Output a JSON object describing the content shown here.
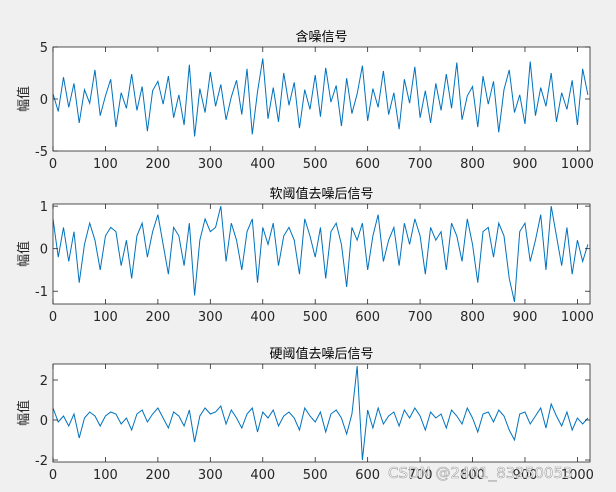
{
  "chart_data": [
    {
      "type": "line",
      "title": "含噪信号",
      "ylabel": "幅值",
      "color": "#0072bd",
      "xlim": [
        0,
        1024
      ],
      "xticks": [
        0,
        100,
        200,
        300,
        400,
        500,
        600,
        700,
        800,
        900,
        1000
      ],
      "ylim": [
        -5,
        5
      ],
      "yticks": [
        -5,
        0,
        5
      ],
      "x": [
        0,
        10,
        20,
        30,
        40,
        50,
        60,
        70,
        80,
        90,
        100,
        110,
        120,
        130,
        140,
        150,
        160,
        170,
        180,
        190,
        200,
        210,
        220,
        230,
        240,
        250,
        260,
        270,
        280,
        290,
        300,
        310,
        320,
        330,
        340,
        350,
        360,
        370,
        380,
        390,
        400,
        410,
        420,
        430,
        440,
        450,
        460,
        470,
        480,
        490,
        500,
        510,
        520,
        530,
        540,
        550,
        560,
        570,
        580,
        590,
        600,
        610,
        620,
        630,
        640,
        650,
        660,
        670,
        680,
        690,
        700,
        710,
        720,
        730,
        740,
        750,
        760,
        770,
        780,
        790,
        800,
        810,
        820,
        830,
        840,
        850,
        860,
        870,
        880,
        890,
        900,
        910,
        920,
        930,
        940,
        950,
        960,
        970,
        980,
        990,
        1000,
        1010,
        1020
      ],
      "values": [
        0.5,
        -1.2,
        2.1,
        -0.8,
        1.5,
        -2.3,
        0.9,
        -0.4,
        2.8,
        -1.6,
        0.3,
        1.9,
        -2.7,
        0.6,
        -0.9,
        2.4,
        -1.1,
        1.2,
        -3.1,
        0.8,
        1.7,
        -0.5,
        2.2,
        -1.8,
        0.4,
        -2.5,
        3.3,
        -3.6,
        1.0,
        -1.3,
        2.6,
        -0.7,
        1.4,
        -2.0,
        0.2,
        1.8,
        -1.5,
        2.9,
        -3.4,
        0.7,
        3.9,
        -1.9,
        1.1,
        -2.2,
        2.5,
        -0.6,
        1.6,
        -2.8,
        0.9,
        -1.0,
        2.3,
        -1.7,
        3.0,
        -0.3,
        1.3,
        -2.6,
        2.0,
        -1.4,
        0.5,
        3.2,
        -2.1,
        1.0,
        -0.8,
        2.7,
        -1.5,
        0.6,
        -2.9,
        1.9,
        -0.4,
        3.1,
        -1.8,
        0.8,
        -2.3,
        1.5,
        -1.1,
        2.4,
        -0.9,
        3.5,
        -2.0,
        0.3,
        1.2,
        -2.7,
        2.2,
        -0.5,
        1.7,
        -3.2,
        0.9,
        2.8,
        -1.3,
        0.4,
        -2.4,
        3.6,
        -1.6,
        1.1,
        -0.7,
        2.5,
        -2.2,
        0.6,
        -1.0,
        1.8,
        -2.5,
        2.9,
        0.4
      ]
    },
    {
      "type": "line",
      "title": "软阈值去噪后信号",
      "ylabel": "幅值",
      "color": "#0072bd",
      "xlim": [
        0,
        1024
      ],
      "xticks": [
        0,
        100,
        200,
        300,
        400,
        500,
        600,
        700,
        800,
        900,
        1000
      ],
      "ylim": [
        -1.3,
        1.05
      ],
      "yticks": [
        -1,
        0,
        1
      ],
      "x": [
        0,
        10,
        20,
        30,
        40,
        50,
        60,
        70,
        80,
        90,
        100,
        110,
        120,
        130,
        140,
        150,
        160,
        170,
        180,
        190,
        200,
        210,
        220,
        230,
        240,
        250,
        260,
        270,
        280,
        290,
        300,
        310,
        320,
        330,
        340,
        350,
        360,
        370,
        380,
        390,
        400,
        410,
        420,
        430,
        440,
        450,
        460,
        470,
        480,
        490,
        500,
        510,
        520,
        530,
        540,
        550,
        560,
        570,
        580,
        590,
        600,
        610,
        620,
        630,
        640,
        650,
        660,
        670,
        680,
        690,
        700,
        710,
        720,
        730,
        740,
        750,
        760,
        770,
        780,
        790,
        800,
        810,
        820,
        830,
        840,
        850,
        860,
        870,
        880,
        890,
        900,
        910,
        920,
        930,
        940,
        950,
        960,
        970,
        980,
        990,
        1000,
        1010,
        1020
      ],
      "values": [
        0.7,
        -0.2,
        0.5,
        -0.3,
        0.4,
        -0.8,
        0.1,
        0.6,
        0.2,
        -0.5,
        0.3,
        0.5,
        0.4,
        -0.4,
        0.2,
        -0.7,
        0.3,
        0.6,
        -0.2,
        0.4,
        0.8,
        0.1,
        -0.6,
        0.5,
        0.3,
        -0.4,
        0.6,
        -1.1,
        0.2,
        0.7,
        0.4,
        0.5,
        1.0,
        -0.3,
        0.6,
        0.2,
        -0.5,
        0.4,
        0.7,
        -0.8,
        0.5,
        0.1,
        0.6,
        -0.4,
        0.3,
        0.5,
        0.2,
        -0.6,
        0.7,
        0.3,
        -0.2,
        0.5,
        -0.7,
        0.4,
        0.6,
        0.1,
        -0.9,
        0.5,
        0.2,
        0.6,
        -0.5,
        0.3,
        0.8,
        -0.3,
        0.2,
        0.5,
        -0.4,
        0.6,
        0.1,
        0.7,
        0.3,
        -0.6,
        0.5,
        0.2,
        0.4,
        -0.5,
        0.6,
        0.3,
        -0.3,
        0.7,
        0.1,
        -0.8,
        0.4,
        0.5,
        -0.2,
        0.6,
        0.3,
        -0.7,
        -1.25,
        0.4,
        0.6,
        -0.3,
        0.2,
        0.8,
        -0.5,
        1.0,
        0.3,
        -0.4,
        0.5,
        -0.6,
        0.2,
        -0.3,
        0.1
      ]
    },
    {
      "type": "line",
      "title": "硬阈值去噪后信号",
      "ylabel": "幅值",
      "color": "#0072bd",
      "xlim": [
        0,
        1024
      ],
      "xticks": [
        0,
        100,
        200,
        300,
        400,
        500,
        600,
        700,
        800,
        900,
        1000
      ],
      "ylim": [
        -2.1,
        2.8
      ],
      "yticks": [
        -2,
        0,
        2
      ],
      "x": [
        0,
        10,
        20,
        30,
        40,
        50,
        60,
        70,
        80,
        90,
        100,
        110,
        120,
        130,
        140,
        150,
        160,
        170,
        180,
        190,
        200,
        210,
        220,
        230,
        240,
        250,
        260,
        270,
        280,
        290,
        300,
        310,
        320,
        330,
        340,
        350,
        360,
        370,
        380,
        390,
        400,
        410,
        420,
        430,
        440,
        450,
        460,
        470,
        480,
        490,
        500,
        510,
        520,
        530,
        540,
        550,
        560,
        570,
        580,
        590,
        600,
        610,
        620,
        630,
        640,
        650,
        660,
        670,
        680,
        690,
        700,
        710,
        720,
        730,
        740,
        750,
        760,
        770,
        780,
        790,
        800,
        810,
        820,
        830,
        840,
        850,
        860,
        870,
        880,
        890,
        900,
        910,
        920,
        930,
        940,
        950,
        960,
        970,
        980,
        990,
        1000,
        1010,
        1020
      ],
      "values": [
        0.6,
        -0.1,
        0.2,
        -0.3,
        0.3,
        -0.9,
        0.1,
        0.4,
        0.2,
        -0.3,
        0.2,
        0.4,
        0.3,
        -0.2,
        0.1,
        -0.5,
        0.3,
        0.5,
        -0.1,
        0.3,
        0.6,
        0.1,
        -0.4,
        0.4,
        0.2,
        -0.3,
        0.5,
        -1.1,
        0.2,
        0.6,
        0.3,
        0.4,
        0.7,
        -0.2,
        0.5,
        0.1,
        -0.4,
        0.3,
        0.6,
        -0.6,
        0.4,
        0.1,
        0.5,
        -0.3,
        0.2,
        0.4,
        0.1,
        -0.5,
        0.6,
        0.2,
        -0.1,
        0.4,
        -0.6,
        0.3,
        0.5,
        0.1,
        -0.7,
        0.3,
        2.7,
        -2.0,
        0.5,
        -0.4,
        0.6,
        -0.2,
        0.2,
        0.4,
        -0.3,
        0.5,
        0.1,
        0.6,
        0.2,
        -0.5,
        0.4,
        0.1,
        0.3,
        -0.4,
        0.5,
        0.2,
        -0.2,
        0.6,
        0.1,
        -0.6,
        0.3,
        0.4,
        -0.1,
        0.5,
        0.2,
        -0.5,
        -1.0,
        0.3,
        0.4,
        -0.2,
        0.2,
        0.6,
        -0.4,
        0.8,
        0.2,
        -0.3,
        0.4,
        -0.5,
        0.1,
        -0.2,
        0.1
      ]
    }
  ],
  "watermark": "CSDN @2401_83250053"
}
